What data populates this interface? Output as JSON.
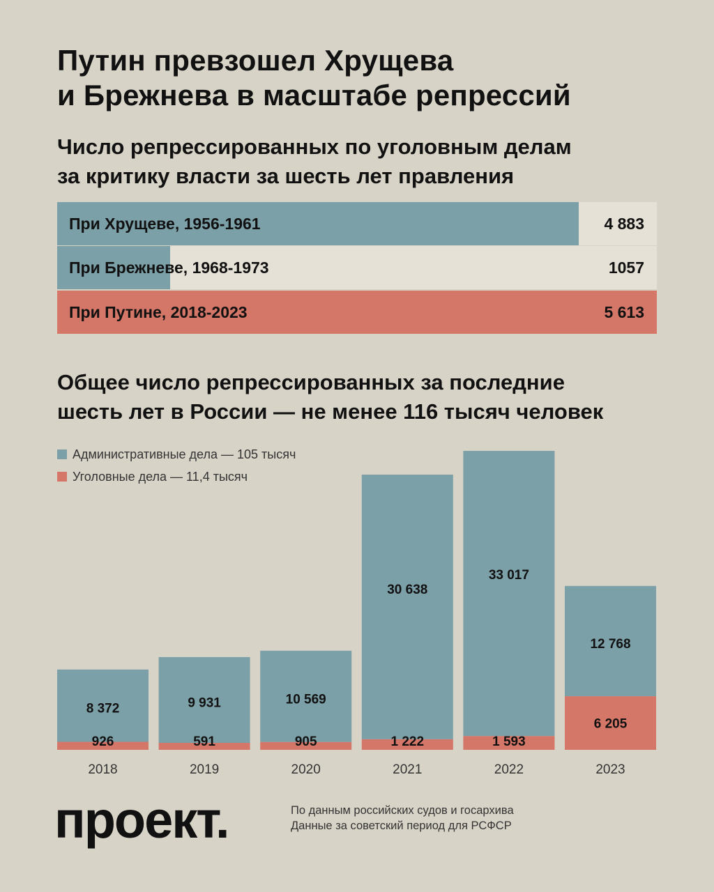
{
  "title": {
    "line1": "Путин превзошел Хрущева",
    "line2": "и Брежнева в масштабе репрессий"
  },
  "section1": {
    "line1": "Число репрессированных по уголовным делам",
    "line2": "за критику власти за шесть лет правления"
  },
  "comparison": [
    {
      "label": "При Хрущеве, 1956-1961",
      "value_text": "4 883",
      "value": 4883,
      "fill_color": "#7ca0a8",
      "track_color": "#e6e1d7"
    },
    {
      "label": "При Брежневе, 1968-1973",
      "value_text": "1057",
      "value": 1057,
      "fill_color": "#7ca0a8",
      "track_color": "#e6e1d7"
    },
    {
      "label": "При Путине, 2018-2023",
      "value_text": "5 613",
      "value": 5613,
      "fill_color": "#d47668",
      "track_color": "#d47668"
    }
  ],
  "section2": {
    "line1": "Общее число репрессированных за последние",
    "line2": "шесть лет в России — не менее 116 тысяч человек"
  },
  "chart_data": {
    "type": "bar",
    "stacked": true,
    "categories": [
      "2018",
      "2019",
      "2020",
      "2021",
      "2022",
      "2023"
    ],
    "series": [
      {
        "name": "Административные дела — 105 тысяч",
        "color": "#7ca0a8",
        "values": [
          8372,
          9931,
          10569,
          30638,
          33017,
          12768
        ],
        "labels": [
          "8 372",
          "9 931",
          "10 569",
          "30 638",
          "33 017",
          "12 768"
        ]
      },
      {
        "name": "Уголовные дела — 11,4 тысяч",
        "color": "#d47668",
        "values": [
          926,
          591,
          905,
          1222,
          1593,
          6205
        ],
        "labels": [
          "926",
          "591",
          "905",
          "1 222",
          "1 593",
          "6 205"
        ]
      }
    ]
  },
  "footer": {
    "logo": "проект.",
    "source_line1": "По данным российских судов и госархива",
    "source_line2": "Данные за советский период для РСФСР"
  }
}
